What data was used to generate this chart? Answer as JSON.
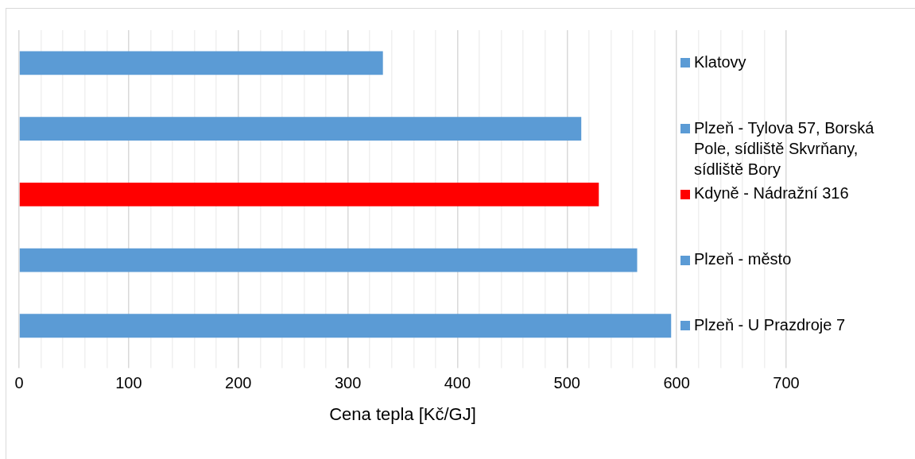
{
  "chart_data": {
    "type": "bar",
    "orientation": "horizontal",
    "xlabel": "Cena tepla [Kč/GJ]",
    "categories": [
      "Klatovy",
      "Plzeň - Tylova 57, Borská Pole, sídliště Skvrňany, sídliště Bory",
      "Kdyně - Nádražní 316",
      "Plzeň - město",
      "Plzeň - U Prazdroje 7"
    ],
    "values": [
      332,
      513,
      529,
      564,
      595
    ],
    "colors": [
      "#5b9bd5",
      "#5b9bd5",
      "#ff0000",
      "#5b9bd5",
      "#5b9bd5"
    ],
    "xlim": [
      0,
      700
    ],
    "xticks": [
      0,
      {
        "value": 20,
        "label": null
      },
      {
        "value": 40,
        "label": null
      },
      {
        "value": 60,
        "label": null
      },
      {
        "value": 80,
        "label": null
      },
      100,
      {
        "value": 120,
        "label": null
      },
      {
        "value": 140,
        "label": null
      },
      {
        "value": 160,
        "label": null
      },
      {
        "value": 180,
        "label": null
      },
      200,
      {
        "value": 220,
        "label": null
      },
      {
        "value": 240,
        "label": null
      },
      {
        "value": 260,
        "label": null
      },
      {
        "value": 280,
        "label": null
      },
      300,
      {
        "value": 320,
        "label": null
      },
      {
        "value": 340,
        "label": null
      },
      {
        "value": 360,
        "label": null
      },
      {
        "value": 380,
        "label": null
      },
      400,
      {
        "value": 420,
        "label": null
      },
      {
        "value": 440,
        "label": null
      },
      {
        "value": 460,
        "label": null
      },
      {
        "value": 480,
        "label": null
      },
      500,
      {
        "value": 520,
        "label": null
      },
      {
        "value": 540,
        "label": null
      },
      {
        "value": 560,
        "label": null
      },
      {
        "value": 580,
        "label": null
      },
      600,
      {
        "value": 620,
        "label": null
      },
      {
        "value": 640,
        "label": null
      },
      {
        "value": 660,
        "label": null
      },
      {
        "value": 680,
        "label": null
      },
      700
    ],
    "grid": "x"
  }
}
